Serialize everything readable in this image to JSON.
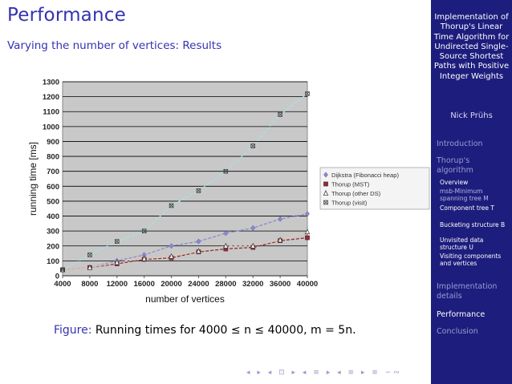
{
  "slide": {
    "title": "Performance",
    "subtitle": "Varying the number of vertices: Results",
    "caption_label": "Figure:",
    "caption_text": "Running times for 4000 ≤ n ≤ 40000, m = 5n."
  },
  "sidebar": {
    "talk_title": "Implementation of Thorup's Linear Time Algorithm for Undirected Single-Source Shortest Paths with Positive Integer Weights",
    "author": "Nick Prühs",
    "nav": [
      {
        "label": "Introduction",
        "active": false
      },
      {
        "label": "Thorup's algorithm",
        "active": false
      },
      {
        "label": "Implementation details",
        "active": false
      },
      {
        "label": "Performance",
        "active": true
      },
      {
        "label": "Conclusion",
        "active": false
      }
    ],
    "subsections": [
      "Overview",
      "msb-Minimum spanning tree M",
      "Component tree T",
      "Bucketing structure B",
      "Unvisited data structure U",
      "Visiting components and vertices"
    ]
  },
  "beamer_nav": "◂ ▸ ◂ ⊡ ▸ ◂ ≡ ▸ ◂ ≡ ▸ ≡ ∽∾",
  "chart_data": {
    "type": "line",
    "x": [
      4000,
      8000,
      12000,
      16000,
      20000,
      24000,
      28000,
      32000,
      36000,
      40000
    ],
    "xlabel": "number of vertices",
    "ylabel": "running time [ms]",
    "xlim": [
      4000,
      40000
    ],
    "ylim": [
      0,
      1300
    ],
    "xticks": [
      "4000",
      "8000",
      "12000",
      "16000",
      "20000",
      "24000",
      "28000",
      "32000",
      "36000",
      "40000"
    ],
    "yticks": [
      "0",
      "100",
      "200",
      "300",
      "400",
      "500",
      "600",
      "700",
      "800",
      "900",
      "1000",
      "1100",
      "1200",
      "1300"
    ],
    "grid": true,
    "legend_position": "right",
    "series": [
      {
        "name": "Dijkstra (Fibonacci heap)",
        "values": [
          40,
          55,
          100,
          140,
          200,
          230,
          285,
          320,
          380,
          415
        ],
        "color": "#8a8ad0",
        "marker": "diamond"
      },
      {
        "name": "Thorup (MST)",
        "values": [
          40,
          55,
          80,
          110,
          120,
          160,
          180,
          190,
          235,
          255
        ],
        "color": "#8b2d3a",
        "marker": "square"
      },
      {
        "name": "Thorup (other DS)",
        "values": [
          40,
          55,
          90,
          115,
          130,
          165,
          200,
          200,
          240,
          295
        ],
        "color": "#e8c8a8",
        "marker": "triangle"
      },
      {
        "name": "Thorup (visit)",
        "values": [
          40,
          140,
          230,
          300,
          470,
          570,
          700,
          870,
          1080,
          1220
        ],
        "color": "#a8e0e8",
        "marker": "x"
      }
    ]
  }
}
